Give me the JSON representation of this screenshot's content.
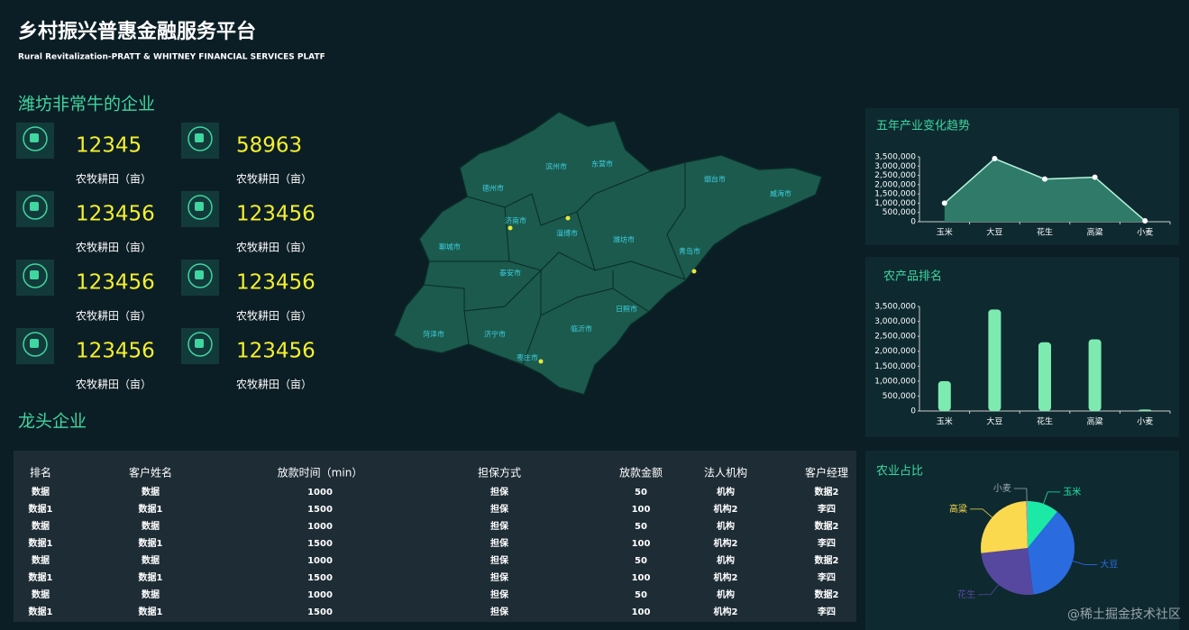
{
  "header": {
    "title": "乡村振兴普惠金融服务平台",
    "subtitle": "Rural Revitalization-PRATT & WHITNEY FINANCIAL SERVICES PLATF"
  },
  "sections": {
    "companies": "潍坊非常牛的企业",
    "leaders": "龙头企业"
  },
  "stats": [
    {
      "value": 12345,
      "label": "农牧耕田（亩）"
    },
    {
      "value": 58963,
      "label": "农牧耕田（亩）"
    },
    {
      "value": 123456,
      "label": "农牧耕田（亩）"
    },
    {
      "value": 123456,
      "label": "农牧耕田（亩）"
    },
    {
      "value": 123456,
      "label": "农牧耕田（亩）"
    },
    {
      "value": 123456,
      "label": "农牧耕田（亩）"
    },
    {
      "value": 123456,
      "label": "农牧耕田（亩）"
    },
    {
      "value": 123456,
      "label": "农牧耕田（亩）"
    }
  ],
  "map": {
    "cities": [
      "德州市",
      "滨州市",
      "东营市",
      "烟台市",
      "威海市",
      "济南市",
      "淄博市",
      "聊城市",
      "潍坊市",
      "青岛市",
      "泰安市",
      "日照市",
      "菏泽市",
      "济宁市",
      "临沂市",
      "枣庄市"
    ]
  },
  "table": {
    "headers": [
      "排名",
      "客户姓名",
      "放款时间（min）",
      "担保方式",
      "放款金额",
      "法人机构",
      "客户经理"
    ],
    "rows": [
      [
        "数据",
        "数据",
        1000,
        "担保",
        50,
        "机构",
        "数据2"
      ],
      [
        "数据1",
        "数据1",
        1500,
        "担保",
        100,
        "机构2",
        "李四"
      ],
      [
        "数据",
        "数据",
        1000,
        "担保",
        50,
        "机构",
        "数据2"
      ],
      [
        "数据1",
        "数据1",
        1500,
        "担保",
        100,
        "机构2",
        "李四"
      ],
      [
        "数据",
        "数据",
        1000,
        "担保",
        50,
        "机构",
        "数据2"
      ],
      [
        "数据1",
        "数据1",
        1500,
        "担保",
        100,
        "机构2",
        "李四"
      ],
      [
        "数据",
        "数据",
        1000,
        "担保",
        50,
        "机构",
        "数据2"
      ],
      [
        "数据1",
        "数据1",
        1500,
        "担保",
        100,
        "机构2",
        "李四"
      ]
    ]
  },
  "chart_data": [
    {
      "type": "area",
      "title": "五年产业变化趋势",
      "categories": [
        "玉米",
        "大豆",
        "花生",
        "高粱",
        "小麦"
      ],
      "values": [
        1000000,
        3400000,
        2300000,
        2400000,
        50000
      ],
      "color": "#b6f2dc",
      "fill": "#2f7a68",
      "ylim": [
        0,
        3500000
      ],
      "yticks": [
        0,
        {
          "value": 500000,
          "label": "500,000"
        },
        {
          "value": 1000000,
          "label": "1,000,000"
        },
        {
          "value": 1500000,
          "label": "1,500,000"
        },
        {
          "value": 2000000,
          "label": "2,000,000"
        },
        {
          "value": 2500000,
          "label": "2,500,000"
        },
        {
          "value": 3000000,
          "label": "3,000,000"
        },
        {
          "value": 3500000,
          "label": "3,500,000"
        }
      ]
    },
    {
      "type": "bar",
      "title": "农产品排名",
      "categories": [
        "玉米",
        "大豆",
        "花生",
        "高粱",
        "小麦"
      ],
      "values": [
        1000000,
        3400000,
        2300000,
        2400000,
        50000
      ],
      "color": "#7debb0",
      "ylim": [
        0,
        3500000
      ],
      "yticks": [
        0,
        {
          "value": 500000,
          "label": "500,000"
        },
        {
          "value": 1000000,
          "label": "1,000,000"
        },
        {
          "value": 1500000,
          "label": "1,500,000"
        },
        {
          "value": 2000000,
          "label": "2,000,000"
        },
        {
          "value": 2500000,
          "label": "2,500,000"
        },
        {
          "value": 3000000,
          "label": "3,000,000"
        },
        {
          "value": 3500000,
          "label": "3,500,000"
        }
      ]
    },
    {
      "type": "pie",
      "title": "农业占比",
      "categories": [
        "玉米",
        "大豆",
        "花生",
        "高粱",
        "小麦"
      ],
      "values": [
        1000000,
        3400000,
        2300000,
        2400000,
        50000
      ],
      "colors": [
        "#1de9a6",
        "#2b6be0",
        "#56479f",
        "#fbd94e",
        "#9aa7b0"
      ]
    }
  ],
  "watermark": "@稀土掘金技术社区"
}
